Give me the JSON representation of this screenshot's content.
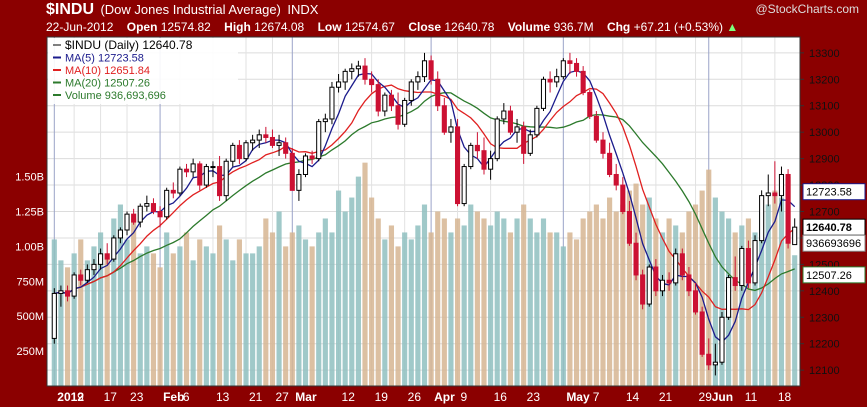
{
  "header": {
    "symbol": "$INDU",
    "name": "(Dow Jones Industrial Average)",
    "exchange": "INDX",
    "brand": "@StockCharts.com",
    "date": "22-Jun-2012",
    "open_label": "Open",
    "open": "12574.82",
    "high_label": "High",
    "high": "12674.08",
    "low_label": "Low",
    "low": "12574.67",
    "close_label": "Close",
    "close": "12640.78",
    "volume_label": "Volume",
    "volume": "936.7M",
    "chg_label": "Chg",
    "chg": "+67.21 (+0.53%)",
    "chg_arrow": "▲"
  },
  "legend": [
    {
      "text": "$INDU (Daily) 12640.78",
      "color": "#000000"
    },
    {
      "text": "MA(5) 12723.58",
      "color": "#1b1b8c"
    },
    {
      "text": "MA(10) 12651.84",
      "color": "#e02020"
    },
    {
      "text": "MA(20) 12507.26",
      "color": "#2c7a2c"
    },
    {
      "text": "Volume 936,693,696",
      "color": "#2c7a2c"
    }
  ],
  "right_labels": {
    "ma5": "12723.58",
    "close": "12640.78",
    "ma20": "12507.26",
    "volume": "936693696"
  },
  "colors": {
    "frame": "#8b0000",
    "up": "#000000",
    "down": "#cc1133",
    "ma5": "#1b1b8c",
    "ma10": "#e02020",
    "ma20": "#2c7a2c",
    "vol_up": "#8fbfbf",
    "vol_down": "#d6b592"
  },
  "chart_data": {
    "type": "candlestick",
    "title": "$INDU (Daily)",
    "y_ticks": [
      12100,
      12200,
      12300,
      12400,
      12500,
      12600,
      12700,
      12800,
      12900,
      13000,
      13100,
      13200,
      13300
    ],
    "y_tick_labels": [
      "12100",
      "12200",
      "12300",
      "12400",
      "12500",
      "12600",
      "12700",
      "12800",
      "12900",
      "13000",
      "13100",
      "13200",
      "13300"
    ],
    "ylim": [
      12040,
      13360
    ],
    "volume_ticks": [
      250000000,
      500000000,
      750000000,
      1000000000,
      1250000000,
      1500000000
    ],
    "volume_tick_labels": [
      "250M",
      "500M",
      "750M",
      "1.00B",
      "1.25B",
      "1.50B"
    ],
    "volume_max": 2500000000,
    "x_tick_labels": [
      {
        "i": 0,
        "label": "2012",
        "bold": true,
        "major": true
      },
      {
        "i": 3,
        "label": "9"
      },
      {
        "i": 7,
        "label": "17"
      },
      {
        "i": 11,
        "label": "23"
      },
      {
        "i": 16,
        "label": "Feb",
        "bold": true,
        "major": true
      },
      {
        "i": 19,
        "label": "6"
      },
      {
        "i": 24,
        "label": "13"
      },
      {
        "i": 29,
        "label": "21"
      },
      {
        "i": 33,
        "label": "27"
      },
      {
        "i": 36,
        "label": "Mar",
        "bold": true,
        "major": true
      },
      {
        "i": 43,
        "label": "12"
      },
      {
        "i": 48,
        "label": "19"
      },
      {
        "i": 53,
        "label": "26"
      },
      {
        "i": 57,
        "label": "Apr",
        "bold": true,
        "major": true
      },
      {
        "i": 61,
        "label": "9"
      },
      {
        "i": 66,
        "label": "16"
      },
      {
        "i": 71,
        "label": "23"
      },
      {
        "i": 77,
        "label": "May",
        "bold": true,
        "major": true
      },
      {
        "i": 81,
        "label": "7"
      },
      {
        "i": 86,
        "label": "14"
      },
      {
        "i": 91,
        "label": "21"
      },
      {
        "i": 97,
        "label": "29"
      },
      {
        "i": 99,
        "label": "Jun",
        "bold": true,
        "major": true
      },
      {
        "i": 104,
        "label": "11"
      },
      {
        "i": 109,
        "label": "18"
      }
    ],
    "candles": [
      {
        "o": 12220,
        "h": 12410,
        "l": 12200,
        "c": 12390,
        "v": 1050000000
      },
      {
        "o": 12390,
        "h": 12420,
        "l": 12340,
        "c": 12400,
        "v": 900000000
      },
      {
        "o": 12400,
        "h": 12420,
        "l": 12360,
        "c": 12380,
        "v": 850000000
      },
      {
        "o": 12380,
        "h": 12470,
        "l": 12370,
        "c": 12460,
        "v": 950000000
      },
      {
        "o": 12460,
        "h": 12480,
        "l": 12420,
        "c": 12440,
        "v": 1050000000
      },
      {
        "o": 12440,
        "h": 12500,
        "l": 12430,
        "c": 12480,
        "v": 900000000
      },
      {
        "o": 12480,
        "h": 12520,
        "l": 12460,
        "c": 12500,
        "v": 1000000000
      },
      {
        "o": 12500,
        "h": 12560,
        "l": 12480,
        "c": 12540,
        "v": 1100000000
      },
      {
        "o": 12540,
        "h": 12580,
        "l": 12500,
        "c": 12520,
        "v": 950000000
      },
      {
        "o": 12520,
        "h": 12610,
        "l": 12510,
        "c": 12600,
        "v": 1200000000
      },
      {
        "o": 12600,
        "h": 12640,
        "l": 12580,
        "c": 12630,
        "v": 1300000000
      },
      {
        "o": 12630,
        "h": 12700,
        "l": 12610,
        "c": 12690,
        "v": 1050000000
      },
      {
        "o": 12690,
        "h": 12710,
        "l": 12650,
        "c": 12660,
        "v": 1200000000
      },
      {
        "o": 12660,
        "h": 12730,
        "l": 12640,
        "c": 12720,
        "v": 950000000
      },
      {
        "o": 12720,
        "h": 12760,
        "l": 12700,
        "c": 12730,
        "v": 1000000000
      },
      {
        "o": 12730,
        "h": 12750,
        "l": 12690,
        "c": 12700,
        "v": 950000000
      },
      {
        "o": 12700,
        "h": 12720,
        "l": 12640,
        "c": 12680,
        "v": 850000000
      },
      {
        "o": 12680,
        "h": 12790,
        "l": 12670,
        "c": 12780,
        "v": 1100000000
      },
      {
        "o": 12780,
        "h": 12810,
        "l": 12750,
        "c": 12770,
        "v": 950000000
      },
      {
        "o": 12770,
        "h": 12870,
        "l": 12760,
        "c": 12860,
        "v": 1000000000
      },
      {
        "o": 12860,
        "h": 12880,
        "l": 12830,
        "c": 12850,
        "v": 1100000000
      },
      {
        "o": 12850,
        "h": 12900,
        "l": 12830,
        "c": 12880,
        "v": 900000000
      },
      {
        "o": 12880,
        "h": 12890,
        "l": 12780,
        "c": 12800,
        "v": 1050000000
      },
      {
        "o": 12800,
        "h": 12880,
        "l": 12790,
        "c": 12870,
        "v": 1000000000
      },
      {
        "o": 12870,
        "h": 12890,
        "l": 12830,
        "c": 12870,
        "v": 950000000
      },
      {
        "o": 12870,
        "h": 12910,
        "l": 12740,
        "c": 12760,
        "v": 1150000000
      },
      {
        "o": 12760,
        "h": 12900,
        "l": 12740,
        "c": 12890,
        "v": 1050000000
      },
      {
        "o": 12890,
        "h": 12960,
        "l": 12870,
        "c": 12950,
        "v": 900000000
      },
      {
        "o": 12950,
        "h": 12970,
        "l": 12880,
        "c": 12900,
        "v": 1050000000
      },
      {
        "o": 12900,
        "h": 12970,
        "l": 12890,
        "c": 12960,
        "v": 950000000
      },
      {
        "o": 12960,
        "h": 12990,
        "l": 12930,
        "c": 12970,
        "v": 950000000
      },
      {
        "o": 12970,
        "h": 13010,
        "l": 12940,
        "c": 12990,
        "v": 1000000000
      },
      {
        "o": 12990,
        "h": 13020,
        "l": 12960,
        "c": 12980,
        "v": 1200000000
      },
      {
        "o": 12980,
        "h": 13010,
        "l": 12940,
        "c": 12950,
        "v": 1100000000
      },
      {
        "o": 12950,
        "h": 12990,
        "l": 12910,
        "c": 12960,
        "v": 1250000000
      },
      {
        "o": 12960,
        "h": 12980,
        "l": 12900,
        "c": 12920,
        "v": 1000000000
      },
      {
        "o": 12920,
        "h": 12940,
        "l": 12780,
        "c": 12780,
        "v": 1100000000
      },
      {
        "o": 12780,
        "h": 12860,
        "l": 12740,
        "c": 12840,
        "v": 1150000000
      },
      {
        "o": 12840,
        "h": 12920,
        "l": 12830,
        "c": 12910,
        "v": 1050000000
      },
      {
        "o": 12910,
        "h": 12930,
        "l": 12880,
        "c": 12900,
        "v": 1000000000
      },
      {
        "o": 12900,
        "h": 13050,
        "l": 12890,
        "c": 13040,
        "v": 1100000000
      },
      {
        "o": 13040,
        "h": 13070,
        "l": 13000,
        "c": 13050,
        "v": 1200000000
      },
      {
        "o": 13050,
        "h": 13190,
        "l": 13030,
        "c": 13170,
        "v": 1100000000
      },
      {
        "o": 13170,
        "h": 13220,
        "l": 13150,
        "c": 13190,
        "v": 1400000000
      },
      {
        "o": 13190,
        "h": 13240,
        "l": 13160,
        "c": 13230,
        "v": 1250000000
      },
      {
        "o": 13230,
        "h": 13260,
        "l": 13200,
        "c": 13240,
        "v": 1350000000
      },
      {
        "o": 13240,
        "h": 13270,
        "l": 13210,
        "c": 13250,
        "v": 1500000000
      },
      {
        "o": 13250,
        "h": 13280,
        "l": 13180,
        "c": 13200,
        "v": 1600000000
      },
      {
        "o": 13200,
        "h": 13230,
        "l": 13150,
        "c": 13180,
        "v": 1350000000
      },
      {
        "o": 13180,
        "h": 13200,
        "l": 13060,
        "c": 13080,
        "v": 1200000000
      },
      {
        "o": 13080,
        "h": 13150,
        "l": 13060,
        "c": 13140,
        "v": 1050000000
      },
      {
        "o": 13140,
        "h": 13160,
        "l": 13080,
        "c": 13100,
        "v": 1150000000
      },
      {
        "o": 13100,
        "h": 13150,
        "l": 13010,
        "c": 13030,
        "v": 1000000000
      },
      {
        "o": 13030,
        "h": 13130,
        "l": 13020,
        "c": 13120,
        "v": 1100000000
      },
      {
        "o": 13120,
        "h": 13200,
        "l": 13100,
        "c": 13190,
        "v": 1050000000
      },
      {
        "o": 13190,
        "h": 13230,
        "l": 13160,
        "c": 13210,
        "v": 1150000000
      },
      {
        "o": 13210,
        "h": 13300,
        "l": 13190,
        "c": 13270,
        "v": 1300000000
      },
      {
        "o": 13270,
        "h": 13290,
        "l": 13180,
        "c": 13200,
        "v": 1100000000
      },
      {
        "o": 13200,
        "h": 13230,
        "l": 13080,
        "c": 13100,
        "v": 1250000000
      },
      {
        "o": 13100,
        "h": 13130,
        "l": 12990,
        "c": 13000,
        "v": 1200000000
      },
      {
        "o": 13000,
        "h": 13050,
        "l": 12960,
        "c": 13020,
        "v": 1100000000
      },
      {
        "o": 13020,
        "h": 13050,
        "l": 12720,
        "c": 12730,
        "v": 1200000000
      },
      {
        "o": 12730,
        "h": 12880,
        "l": 12720,
        "c": 12870,
        "v": 1150000000
      },
      {
        "o": 12870,
        "h": 12960,
        "l": 12860,
        "c": 12950,
        "v": 1300000000
      },
      {
        "o": 12950,
        "h": 13000,
        "l": 12900,
        "c": 12930,
        "v": 1250000000
      },
      {
        "o": 12930,
        "h": 12980,
        "l": 12840,
        "c": 12860,
        "v": 1200000000
      },
      {
        "o": 12860,
        "h": 12930,
        "l": 12820,
        "c": 12900,
        "v": 1150000000
      },
      {
        "o": 12900,
        "h": 13060,
        "l": 12890,
        "c": 13050,
        "v": 1250000000
      },
      {
        "o": 13050,
        "h": 13110,
        "l": 13030,
        "c": 13080,
        "v": 1200000000
      },
      {
        "o": 13080,
        "h": 13100,
        "l": 12990,
        "c": 13000,
        "v": 1100000000
      },
      {
        "o": 13000,
        "h": 13050,
        "l": 12960,
        "c": 13020,
        "v": 1200000000
      },
      {
        "o": 13020,
        "h": 13040,
        "l": 12880,
        "c": 12920,
        "v": 1300000000
      },
      {
        "o": 12920,
        "h": 13010,
        "l": 12910,
        "c": 12990,
        "v": 1200000000
      },
      {
        "o": 12990,
        "h": 13100,
        "l": 12980,
        "c": 13090,
        "v": 1100000000
      },
      {
        "o": 13090,
        "h": 13210,
        "l": 13080,
        "c": 13200,
        "v": 1200000000
      },
      {
        "o": 13200,
        "h": 13230,
        "l": 13150,
        "c": 13190,
        "v": 1100000000
      },
      {
        "o": 13190,
        "h": 13240,
        "l": 13170,
        "c": 13210,
        "v": 1100000000
      },
      {
        "o": 13210,
        "h": 13280,
        "l": 13200,
        "c": 13270,
        "v": 1000000000
      },
      {
        "o": 13270,
        "h": 13300,
        "l": 13220,
        "c": 13260,
        "v": 1100000000
      },
      {
        "o": 13260,
        "h": 13280,
        "l": 13210,
        "c": 13230,
        "v": 1050000000
      },
      {
        "o": 13230,
        "h": 13250,
        "l": 13140,
        "c": 13150,
        "v": 1200000000
      },
      {
        "o": 13150,
        "h": 13160,
        "l": 13050,
        "c": 13060,
        "v": 1250000000
      },
      {
        "o": 13060,
        "h": 13080,
        "l": 12960,
        "c": 12970,
        "v": 1300000000
      },
      {
        "o": 12970,
        "h": 13000,
        "l": 12900,
        "c": 12920,
        "v": 1200000000
      },
      {
        "o": 12920,
        "h": 12960,
        "l": 12830,
        "c": 12840,
        "v": 1350000000
      },
      {
        "o": 12840,
        "h": 12880,
        "l": 12780,
        "c": 12800,
        "v": 1250000000
      },
      {
        "o": 12800,
        "h": 12830,
        "l": 12690,
        "c": 12700,
        "v": 1300000000
      },
      {
        "o": 12700,
        "h": 12740,
        "l": 12570,
        "c": 12580,
        "v": 1400000000
      },
      {
        "o": 12580,
        "h": 12620,
        "l": 12440,
        "c": 12460,
        "v": 1450000000
      },
      {
        "o": 12460,
        "h": 12480,
        "l": 12330,
        "c": 12350,
        "v": 1300000000
      },
      {
        "o": 12350,
        "h": 12500,
        "l": 12340,
        "c": 12490,
        "v": 1350000000
      },
      {
        "o": 12490,
        "h": 12520,
        "l": 12380,
        "c": 12400,
        "v": 1200000000
      },
      {
        "o": 12400,
        "h": 12460,
        "l": 12380,
        "c": 12440,
        "v": 1100000000
      },
      {
        "o": 12440,
        "h": 12470,
        "l": 12400,
        "c": 12430,
        "v": 1200000000
      },
      {
        "o": 12430,
        "h": 12560,
        "l": 12420,
        "c": 12540,
        "v": 1150000000
      },
      {
        "o": 12540,
        "h": 12560,
        "l": 12440,
        "c": 12460,
        "v": 1100000000
      },
      {
        "o": 12460,
        "h": 12490,
        "l": 12380,
        "c": 12400,
        "v": 1250000000
      },
      {
        "o": 12400,
        "h": 12430,
        "l": 12310,
        "c": 12320,
        "v": 1300000000
      },
      {
        "o": 12320,
        "h": 12340,
        "l": 12150,
        "c": 12160,
        "v": 1400000000
      },
      {
        "o": 12160,
        "h": 12220,
        "l": 12100,
        "c": 12120,
        "v": 1550000000
      },
      {
        "o": 12120,
        "h": 12200,
        "l": 12080,
        "c": 12130,
        "v": 1350000000
      },
      {
        "o": 12130,
        "h": 12320,
        "l": 12120,
        "c": 12300,
        "v": 1250000000
      },
      {
        "o": 12300,
        "h": 12460,
        "l": 12290,
        "c": 12450,
        "v": 1200000000
      },
      {
        "o": 12450,
        "h": 12530,
        "l": 12400,
        "c": 12420,
        "v": 1100000000
      },
      {
        "o": 12420,
        "h": 12570,
        "l": 12400,
        "c": 12560,
        "v": 1150000000
      },
      {
        "o": 12560,
        "h": 12590,
        "l": 12410,
        "c": 12430,
        "v": 1200000000
      },
      {
        "o": 12430,
        "h": 12610,
        "l": 12420,
        "c": 12590,
        "v": 1100000000
      },
      {
        "o": 12590,
        "h": 12780,
        "l": 12580,
        "c": 12760,
        "v": 1250000000
      },
      {
        "o": 12760,
        "h": 12840,
        "l": 12720,
        "c": 12770,
        "v": 1300000000
      },
      {
        "o": 12770,
        "h": 12890,
        "l": 12730,
        "c": 12760,
        "v": 1400000000
      },
      {
        "o": 12760,
        "h": 12870,
        "l": 12700,
        "c": 12840,
        "v": 1350000000
      },
      {
        "o": 12840,
        "h": 12860,
        "l": 12560,
        "c": 12580,
        "v": 1500000000
      },
      {
        "o": 12574.82,
        "h": 12674.08,
        "l": 12574.67,
        "c": 12640.78,
        "v": 936693696
      }
    ]
  }
}
